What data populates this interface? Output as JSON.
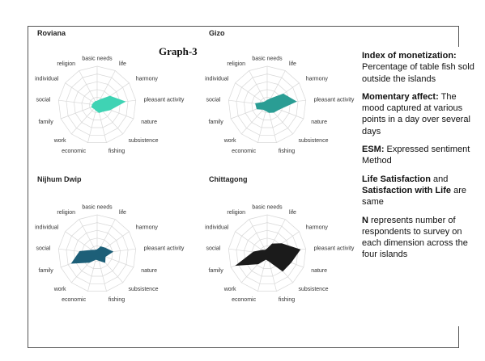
{
  "graph_label": "Graph-3",
  "legend": [
    {
      "term": "Index of monetization:",
      "text": " Percentage of table fish sold outside the islands"
    },
    {
      "term": "Momentary affect:",
      "text": " The mood captured at various points in a day over several days"
    },
    {
      "term": "ESM:",
      "text": " Expressed sentiment Method"
    },
    {
      "term": "Life Satisfaction",
      "text": " and ",
      "term2": "Satisfaction with Life",
      "text2": " are same"
    },
    {
      "term": "N",
      "text": " represents number of respondents to survey on each dimension across the four islands"
    }
  ],
  "chart_data": [
    {
      "type": "radar",
      "title": "Roviana",
      "color": "#3fd3b4",
      "categories": [
        "basic needs",
        "life",
        "harmony",
        "pleasant activity",
        "nature",
        "subsistence",
        "fishing",
        "economic",
        "work",
        "family",
        "social",
        "individual",
        "religion"
      ],
      "values": [
        0.1,
        0.15,
        0.4,
        0.72,
        0.35,
        0.22,
        0.2,
        0.14,
        0.12,
        0.15,
        0.12,
        0.1,
        0.1
      ]
    },
    {
      "type": "radar",
      "title": "Gizo",
      "color": "#2a9d94",
      "categories": [
        "basic needs",
        "life",
        "harmony",
        "pleasant activity",
        "nature",
        "subsistence",
        "fishing",
        "economic",
        "work",
        "family",
        "social",
        "individual",
        "religion"
      ],
      "values": [
        0.12,
        0.18,
        0.5,
        0.75,
        0.32,
        0.25,
        0.2,
        0.15,
        0.15,
        0.28,
        0.3,
        0.12,
        0.1
      ]
    },
    {
      "type": "radar",
      "title": "Nijhum Dwip",
      "color": "#1d5f78",
      "categories": [
        "basic needs",
        "life",
        "harmony",
        "pleasant activity",
        "nature",
        "subsistence",
        "fishing",
        "economic",
        "work",
        "family",
        "social",
        "individual",
        "religion"
      ],
      "values": [
        0.1,
        0.2,
        0.25,
        0.4,
        0.22,
        0.3,
        0.18,
        0.15,
        0.3,
        0.7,
        0.45,
        0.15,
        0.1
      ]
    },
    {
      "type": "radar",
      "title": "Chittagong",
      "color": "#1b1b1b",
      "categories": [
        "basic needs",
        "life",
        "harmony",
        "pleasant activity",
        "nature",
        "subsistence",
        "fishing",
        "economic",
        "work",
        "family",
        "social",
        "individual",
        "religion"
      ],
      "values": [
        0.12,
        0.28,
        0.45,
        0.85,
        0.65,
        0.6,
        0.2,
        0.15,
        0.35,
        0.85,
        0.35,
        0.15,
        0.1
      ]
    }
  ]
}
